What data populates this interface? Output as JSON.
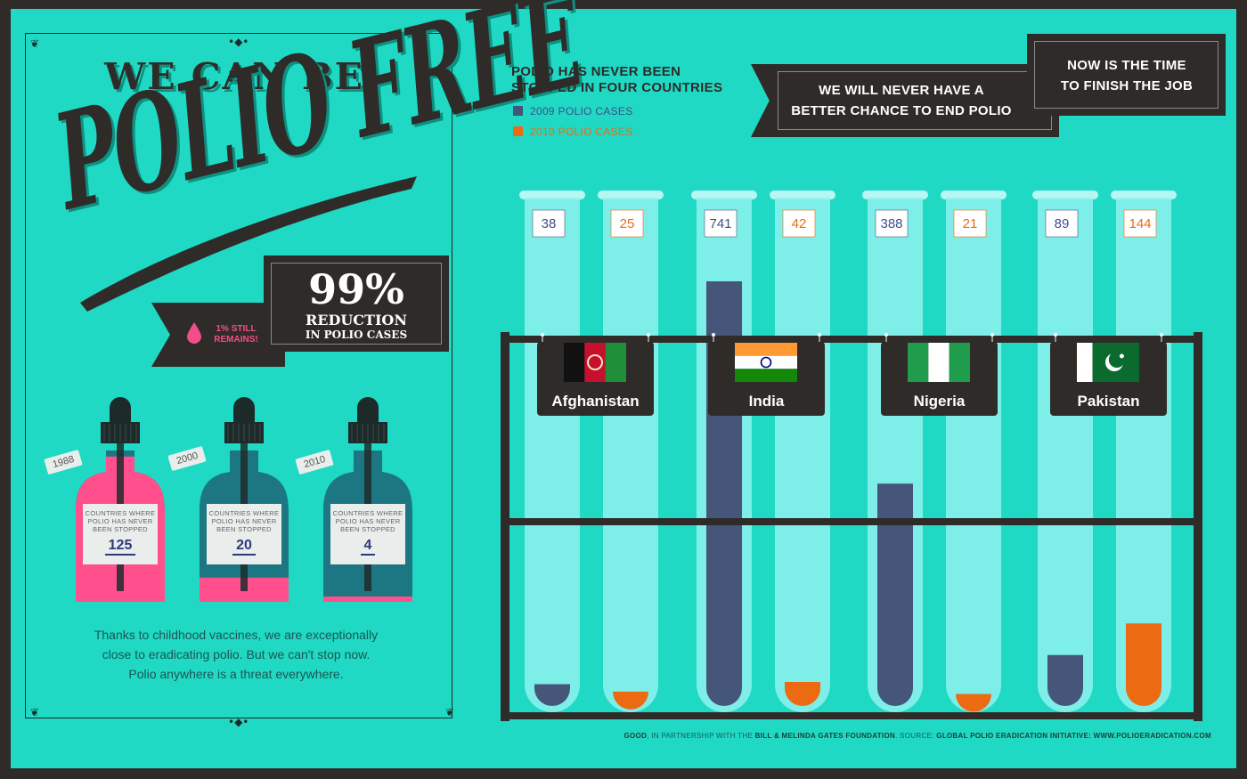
{
  "poster": {
    "headline_line1": "WE CAN BE",
    "headline_line2": "POLIO FREE",
    "reduction_pct": "99%",
    "reduction_line1": "REDUCTION",
    "reduction_line2": "IN POLIO CASES",
    "still_remains": "1% STILL REMAINS!",
    "bottles": [
      {
        "year": "1988",
        "label": "COUNTRIES WHERE POLIO HAS NEVER BEEN STOPPED",
        "count": "125",
        "fill_fraction": 0.96
      },
      {
        "year": "2000",
        "label": "COUNTRIES WHERE POLIO HAS NEVER BEEN STOPPED",
        "count": "20",
        "fill_fraction": 0.16
      },
      {
        "year": "2010",
        "label": "COUNTRIES WHERE POLIO HAS NEVER BEEN STOPPED",
        "count": "4",
        "fill_fraction": 0.03
      }
    ],
    "caption_lines": [
      "Thanks to childhood vaccines, we are exceptionally",
      "close to eradicating polio. But we can't stop now.",
      "Polio anywhere is a threat everywhere."
    ],
    "banner_left": [
      "WE WILL NEVER HAVE A",
      "BETTER CHANCE TO END POLIO"
    ],
    "banner_right": [
      "NOW IS THE TIME",
      "TO FINISH THE JOB"
    ],
    "footer": {
      "part1": "GOOD",
      "part2": ", IN PARTNERSHIP WITH THE ",
      "part3": "BILL & MELINDA GATES FOUNDATION",
      "part4": ". SOURCE: ",
      "part5": "GLOBAL POLIO ERADICATION INITIATIVE: WWW.POLIOERADICATION.COM"
    }
  },
  "colors": {
    "background": "#1fd9c4",
    "dark": "#2e2b28",
    "series_2009": "#45567a",
    "series_2010": "#ec6b12",
    "tube_glass": "#8ef2ef",
    "tube_rim": "#b6f7f4",
    "bottle_pink": "#ff4f8c",
    "bottle_teal": "#1d7782"
  },
  "chart_data": {
    "type": "bar",
    "title": [
      "POLIO HAS NEVER BEEN",
      "STOPPED IN FOUR COUNTRIES"
    ],
    "categories": [
      "Afghanistan",
      "India",
      "Nigeria",
      "Pakistan"
    ],
    "flags": [
      "afghanistan-flag",
      "india-flag",
      "nigeria-flag",
      "pakistan-flag"
    ],
    "series": [
      {
        "name": "2009 POLIO CASES",
        "values": [
          38,
          741,
          388,
          89
        ]
      },
      {
        "name": "2010 POLIO CASES",
        "values": [
          25,
          42,
          21,
          144
        ]
      }
    ],
    "ylim": [
      0,
      800
    ],
    "legend": "top-left"
  }
}
